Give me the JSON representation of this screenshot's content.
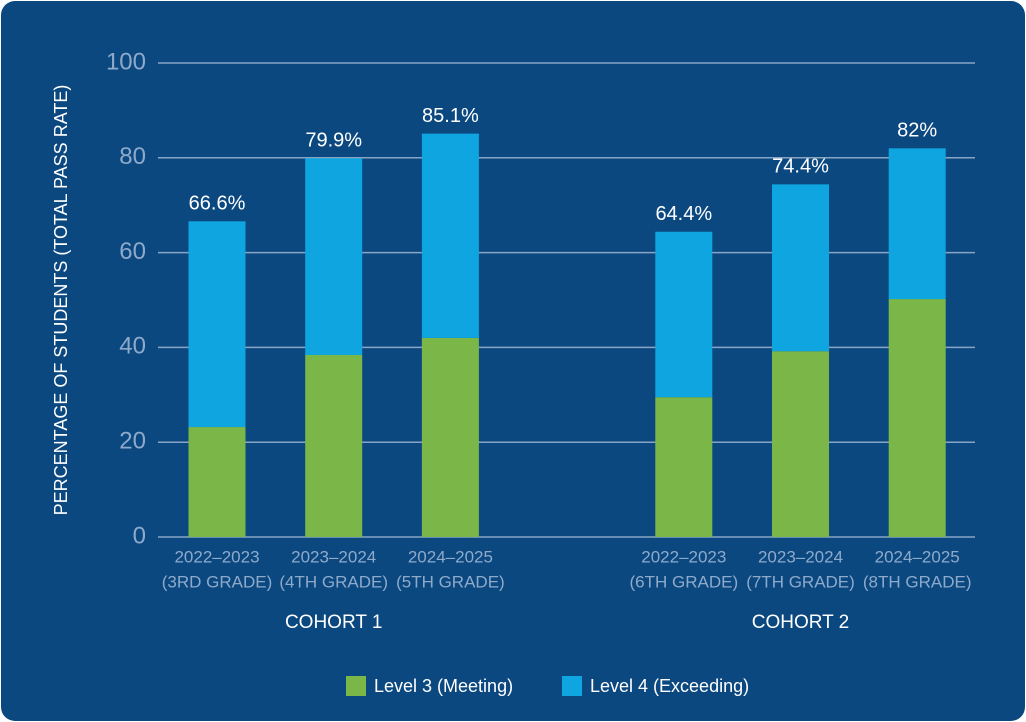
{
  "chart_data": {
    "type": "stacked_bar",
    "y_axis_label": "PERCENTAGE OF STUDENTS (TOTAL PASS RATE)",
    "categories": [
      [
        "2022–2023",
        "(3RD GRADE)"
      ],
      [
        "2023–2024",
        "(4TH GRADE)"
      ],
      [
        "2024–2025",
        "(5TH GRADE)"
      ],
      [
        "2022–2023",
        "(6TH GRADE)"
      ],
      [
        "2023–2024",
        "(7TH GRADE)"
      ],
      [
        "2024–2025",
        "(8TH GRADE)"
      ]
    ],
    "groups": [
      "COHORT 1",
      "COHORT 2"
    ],
    "series": [
      {
        "name": "Level 3 (Meeting)",
        "color": "#7ab648",
        "values": [
          23.2,
          38.4,
          42,
          29.5,
          39.2,
          50.2
        ]
      },
      {
        "name": "Level 4 (Exceeding)",
        "color": "#0ea5e0",
        "values": [
          43.4,
          41.5,
          43.1,
          34.9,
          35.2,
          31.8
        ]
      }
    ],
    "totals": {
      "values": [
        66.6,
        79.9,
        85.1,
        64.4,
        74.4,
        82
      ],
      "value_labels": [
        "66.6%",
        "79.9%",
        "85.1%",
        "64.4%",
        "74.4%",
        "82%"
      ]
    },
    "ylim": [
      0,
      100
    ],
    "yticks": [
      0,
      20,
      40,
      60,
      80,
      100
    ],
    "grid": true,
    "legend": "bottom"
  }
}
